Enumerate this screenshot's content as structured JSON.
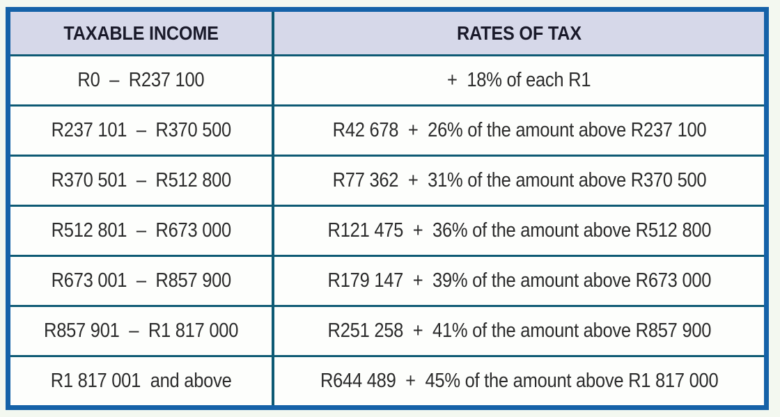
{
  "table": {
    "headers": {
      "income": "TAXABLE INCOME",
      "rates": "RATES OF TAX"
    },
    "rows": [
      {
        "income": "R0  –  R237 100",
        "rate": "+  18% of each R1"
      },
      {
        "income": "R237 101  –  R370 500",
        "rate": "R42 678  +  26% of the amount above R237 100"
      },
      {
        "income": "R370 501  –  R512 800",
        "rate": "R77 362  +  31% of the amount above R370 500"
      },
      {
        "income": "R512 801  –  R673 000",
        "rate": "R121 475  +  36% of the amount above R512 800"
      },
      {
        "income": "R673 001  –  R857 900",
        "rate": "R179 147  +  39% of the amount above R673 000"
      },
      {
        "income": "R857 901  –  R1 817 000",
        "rate": "R251 258  +  41% of the amount above R857 900"
      },
      {
        "income": "R1 817 001  and above",
        "rate": "R644 489  +  45% of the amount above R1 817 000"
      }
    ],
    "colors": {
      "outer_border": "#1562a8",
      "inner_lines": "#0e5a74",
      "header_background": "#d6d8e9",
      "header_text": "#1a1a2a",
      "cell_background": "#fdfefc",
      "cell_text": "#2b2b2b",
      "page_background": "#f3f8f0"
    }
  }
}
